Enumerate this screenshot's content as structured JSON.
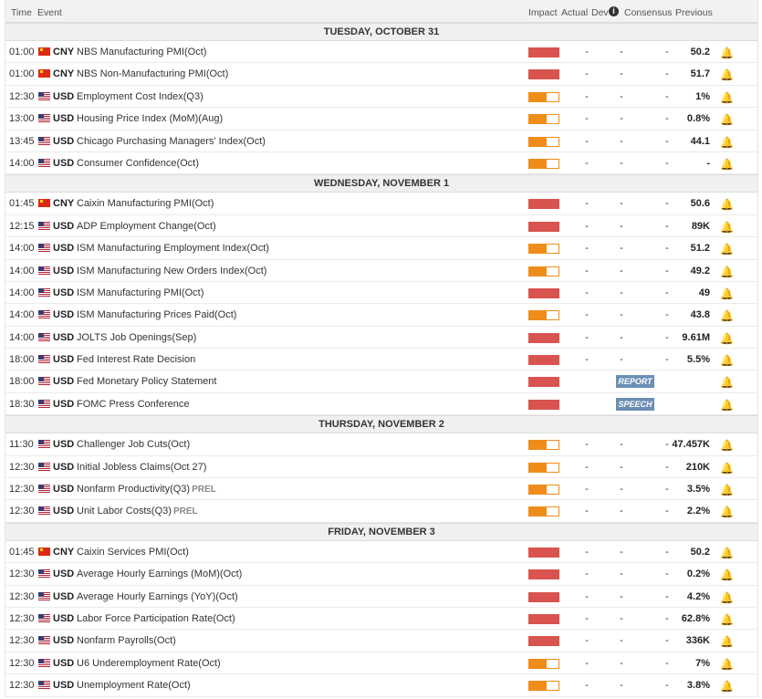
{
  "header": {
    "time": "Time",
    "event": "Event",
    "impact": "Impact",
    "actual": "Actual",
    "dev": "Dev",
    "consensus": "Consensus",
    "previous": "Previous",
    "dev_info_icon": "info-icon"
  },
  "days": [
    {
      "label": "TUESDAY, OCTOBER 31",
      "rows": [
        {
          "time": "01:00",
          "flag": "cn",
          "currency": "CNY",
          "event": "NBS Manufacturing PMI(Oct)",
          "impact": "high",
          "actual": "-",
          "dev": "-",
          "consensus": "-",
          "previous": "50.2"
        },
        {
          "time": "01:00",
          "flag": "cn",
          "currency": "CNY",
          "event": "NBS Non-Manufacturing PMI(Oct)",
          "impact": "high",
          "actual": "-",
          "dev": "-",
          "consensus": "-",
          "previous": "51.7"
        },
        {
          "time": "12:30",
          "flag": "us",
          "currency": "USD",
          "event": "Employment Cost Index(Q3)",
          "impact": "med",
          "actual": "-",
          "dev": "-",
          "consensus": "-",
          "previous": "1%"
        },
        {
          "time": "13:00",
          "flag": "us",
          "currency": "USD",
          "event": "Housing Price Index (MoM)(Aug)",
          "impact": "med",
          "actual": "-",
          "dev": "-",
          "consensus": "-",
          "previous": "0.8%"
        },
        {
          "time": "13:45",
          "flag": "us",
          "currency": "USD",
          "event": "Chicago Purchasing Managers' Index(Oct)",
          "impact": "med",
          "actual": "-",
          "dev": "-",
          "consensus": "-",
          "previous": "44.1"
        },
        {
          "time": "14:00",
          "flag": "us",
          "currency": "USD",
          "event": "Consumer Confidence(Oct)",
          "impact": "med",
          "actual": "-",
          "dev": "-",
          "consensus": "-",
          "previous": "-"
        }
      ]
    },
    {
      "label": "WEDNESDAY, NOVEMBER 1",
      "rows": [
        {
          "time": "01:45",
          "flag": "cn",
          "currency": "CNY",
          "event": "Caixin Manufacturing PMI(Oct)",
          "impact": "high",
          "actual": "-",
          "dev": "-",
          "consensus": "-",
          "previous": "50.6"
        },
        {
          "time": "12:15",
          "flag": "us",
          "currency": "USD",
          "event": "ADP Employment Change(Oct)",
          "impact": "high",
          "actual": "-",
          "dev": "-",
          "consensus": "-",
          "previous": "89K"
        },
        {
          "time": "14:00",
          "flag": "us",
          "currency": "USD",
          "event": "ISM Manufacturing Employment Index(Oct)",
          "impact": "med",
          "actual": "-",
          "dev": "-",
          "consensus": "-",
          "previous": "51.2"
        },
        {
          "time": "14:00",
          "flag": "us",
          "currency": "USD",
          "event": "ISM Manufacturing New Orders Index(Oct)",
          "impact": "med",
          "actual": "-",
          "dev": "-",
          "consensus": "-",
          "previous": "49.2"
        },
        {
          "time": "14:00",
          "flag": "us",
          "currency": "USD",
          "event": "ISM Manufacturing PMI(Oct)",
          "impact": "high",
          "actual": "-",
          "dev": "-",
          "consensus": "-",
          "previous": "49"
        },
        {
          "time": "14:00",
          "flag": "us",
          "currency": "USD",
          "event": "ISM Manufacturing Prices Paid(Oct)",
          "impact": "med",
          "actual": "-",
          "dev": "-",
          "consensus": "-",
          "previous": "43.8"
        },
        {
          "time": "14:00",
          "flag": "us",
          "currency": "USD",
          "event": "JOLTS Job Openings(Sep)",
          "impact": "high",
          "actual": "-",
          "dev": "-",
          "consensus": "-",
          "previous": "9.61M"
        },
        {
          "time": "18:00",
          "flag": "us",
          "currency": "USD",
          "event": "Fed Interest Rate Decision",
          "impact": "high",
          "actual": "-",
          "dev": "-",
          "consensus": "-",
          "previous": "5.5%"
        },
        {
          "time": "18:00",
          "flag": "us",
          "currency": "USD",
          "event": "Fed Monetary Policy Statement",
          "impact": "high",
          "badge": "REPORT"
        },
        {
          "time": "18:30",
          "flag": "us",
          "currency": "USD",
          "event": "FOMC Press Conference",
          "impact": "high",
          "badge": "SPEECH"
        }
      ]
    },
    {
      "label": "THURSDAY, NOVEMBER 2",
      "rows": [
        {
          "time": "11:30",
          "flag": "us",
          "currency": "USD",
          "event": "Challenger Job Cuts(Oct)",
          "impact": "med",
          "actual": "-",
          "dev": "-",
          "consensus": "-",
          "previous": "47.457K"
        },
        {
          "time": "12:30",
          "flag": "us",
          "currency": "USD",
          "event": "Initial Jobless Claims(Oct 27)",
          "impact": "med",
          "actual": "-",
          "dev": "-",
          "consensus": "-",
          "previous": "210K"
        },
        {
          "time": "12:30",
          "flag": "us",
          "currency": "USD",
          "event": "Nonfarm Productivity(Q3)",
          "prel": "PREL",
          "impact": "med",
          "actual": "-",
          "dev": "-",
          "consensus": "-",
          "previous": "3.5%"
        },
        {
          "time": "12:30",
          "flag": "us",
          "currency": "USD",
          "event": "Unit Labor Costs(Q3)",
          "prel": "PREL",
          "impact": "med",
          "actual": "-",
          "dev": "-",
          "consensus": "-",
          "previous": "2.2%"
        }
      ]
    },
    {
      "label": "FRIDAY, NOVEMBER 3",
      "rows": [
        {
          "time": "01:45",
          "flag": "cn",
          "currency": "CNY",
          "event": "Caixin Services PMI(Oct)",
          "impact": "high",
          "actual": "-",
          "dev": "-",
          "consensus": "-",
          "previous": "50.2"
        },
        {
          "time": "12:30",
          "flag": "us",
          "currency": "USD",
          "event": "Average Hourly Earnings (MoM)(Oct)",
          "impact": "high",
          "actual": "-",
          "dev": "-",
          "consensus": "-",
          "previous": "0.2%"
        },
        {
          "time": "12:30",
          "flag": "us",
          "currency": "USD",
          "event": "Average Hourly Earnings (YoY)(Oct)",
          "impact": "high",
          "actual": "-",
          "dev": "-",
          "consensus": "-",
          "previous": "4.2%"
        },
        {
          "time": "12:30",
          "flag": "us",
          "currency": "USD",
          "event": "Labor Force Participation Rate(Oct)",
          "impact": "high",
          "actual": "-",
          "dev": "-",
          "consensus": "-",
          "previous": "62.8%"
        },
        {
          "time": "12:30",
          "flag": "us",
          "currency": "USD",
          "event": "Nonfarm Payrolls(Oct)",
          "impact": "high",
          "actual": "-",
          "dev": "-",
          "consensus": "-",
          "previous": "336K"
        },
        {
          "time": "12:30",
          "flag": "us",
          "currency": "USD",
          "event": "U6 Underemployment Rate(Oct)",
          "impact": "med",
          "actual": "-",
          "dev": "-",
          "consensus": "-",
          "previous": "7%"
        },
        {
          "time": "12:30",
          "flag": "us",
          "currency": "USD",
          "event": "Unemployment Rate(Oct)",
          "impact": "med",
          "actual": "-",
          "dev": "-",
          "consensus": "-",
          "previous": "3.8%"
        }
      ]
    }
  ]
}
